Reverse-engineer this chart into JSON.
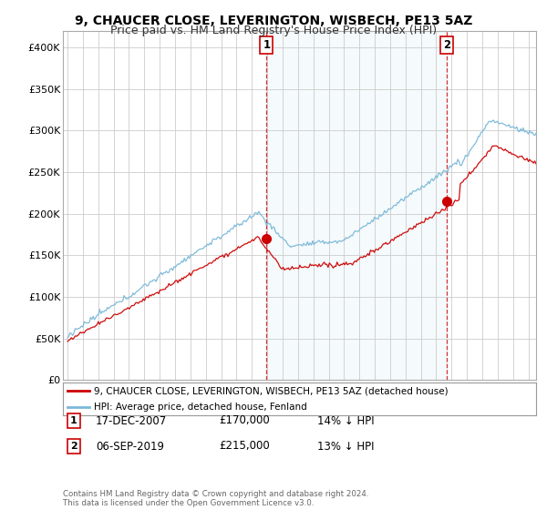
{
  "title": "9, CHAUCER CLOSE, LEVERINGTON, WISBECH, PE13 5AZ",
  "subtitle": "Price paid vs. HM Land Registry's House Price Index (HPI)",
  "ylim": [
    0,
    420000
  ],
  "yticks": [
    0,
    50000,
    100000,
    150000,
    200000,
    250000,
    300000,
    350000,
    400000
  ],
  "ytick_labels": [
    "£0",
    "£50K",
    "£100K",
    "£150K",
    "£200K",
    "£250K",
    "£300K",
    "£350K",
    "£400K"
  ],
  "hpi_color": "#7ab8d9",
  "hpi_fill_color": "#daeef7",
  "price_color": "#cc0000",
  "marker_color": "#cc0000",
  "sale1_date": "17-DEC-2007",
  "sale1_price": 170000,
  "sale1_pct": "14%",
  "sale2_date": "06-SEP-2019",
  "sale2_price": 215000,
  "sale2_pct": "13%",
  "legend_property": "9, CHAUCER CLOSE, LEVERINGTON, WISBECH, PE13 5AZ (detached house)",
  "legend_hpi": "HPI: Average price, detached house, Fenland",
  "footer": "Contains HM Land Registry data © Crown copyright and database right 2024.\nThis data is licensed under the Open Government Licence v3.0.",
  "background_color": "#ffffff",
  "grid_color": "#cccccc",
  "title_fontsize": 10,
  "subtitle_fontsize": 9
}
